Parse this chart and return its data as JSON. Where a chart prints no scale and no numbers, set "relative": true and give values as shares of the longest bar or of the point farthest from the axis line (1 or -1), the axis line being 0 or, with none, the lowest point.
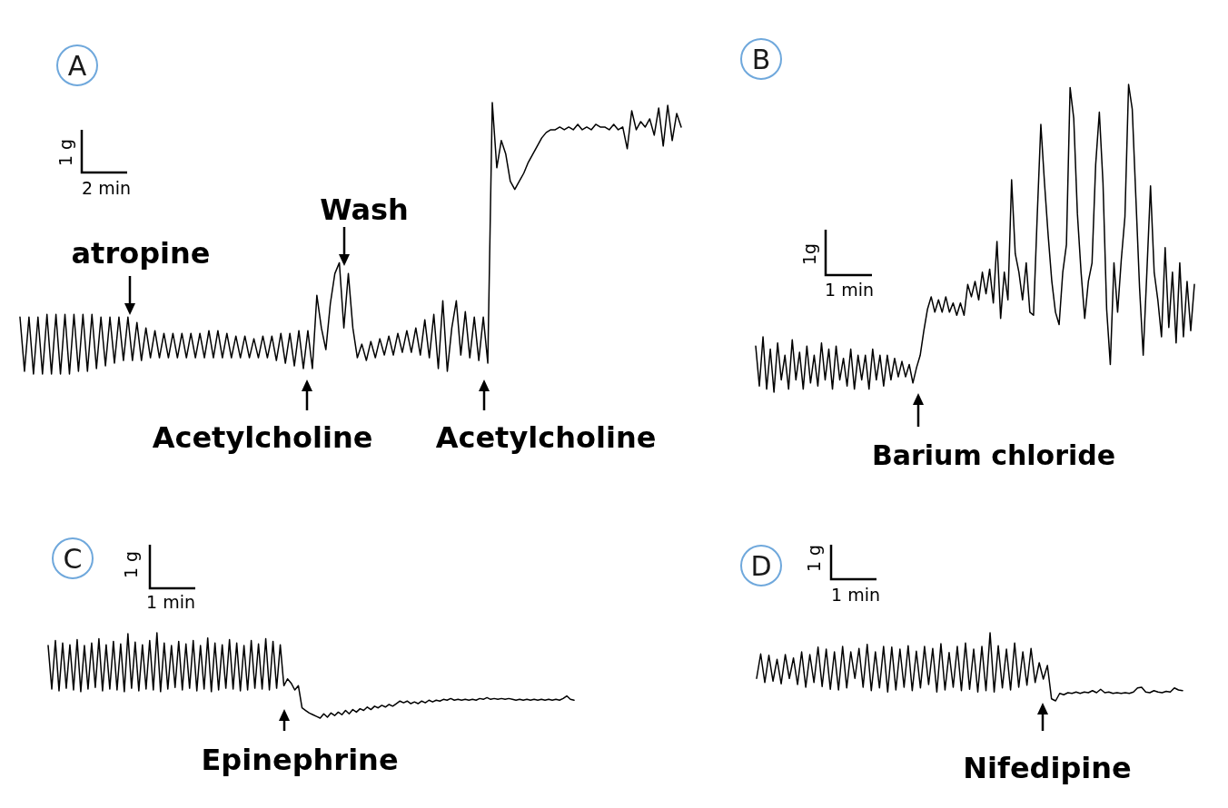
{
  "chart_data": [
    {
      "type": "line",
      "title": "A",
      "relative": true,
      "color": "#000000",
      "categories": [
        null,
        null,
        null,
        null,
        null,
        null,
        null,
        null,
        null,
        null,
        null,
        null,
        null,
        null,
        null,
        null,
        null,
        null,
        null,
        null,
        null,
        null,
        null,
        null,
        null,
        null,
        null,
        null,
        null,
        null,
        null,
        null,
        null,
        null,
        null,
        null,
        null,
        null,
        null,
        null,
        null,
        null,
        null,
        null,
        null,
        null,
        null,
        null,
        null,
        null,
        null,
        null,
        null,
        null,
        null,
        null,
        null,
        null,
        null,
        null,
        null,
        null,
        null,
        null,
        null,
        null,
        null,
        null,
        null,
        null,
        null,
        null,
        null,
        null,
        null,
        null,
        null,
        null,
        null,
        null,
        null,
        null,
        null,
        null,
        null,
        null,
        null,
        null,
        null,
        null,
        null,
        null,
        null,
        null,
        null,
        null,
        null,
        null,
        null,
        null,
        null,
        null,
        null,
        null,
        null,
        null,
        null,
        null,
        null,
        null,
        null,
        null,
        null,
        null,
        null,
        null,
        null,
        null,
        null,
        null,
        null,
        null,
        null,
        null,
        null,
        null,
        null,
        null,
        null,
        null,
        null,
        null,
        null,
        null,
        null,
        null,
        null,
        null,
        null,
        null,
        null,
        null,
        null,
        null,
        null,
        null,
        null,
        null
      ],
      "values": [
        0.21,
        0.01,
        0.21,
        0,
        0.21,
        0,
        0.22,
        0,
        0.22,
        0,
        0.22,
        0,
        0.22,
        0.01,
        0.22,
        0.01,
        0.22,
        0.02,
        0.21,
        0.03,
        0.21,
        0.04,
        0.21,
        0.05,
        0.21,
        0.05,
        0.19,
        0.05,
        0.17,
        0.06,
        0.16,
        0.06,
        0.15,
        0.06,
        0.15,
        0.06,
        0.15,
        0.06,
        0.15,
        0.06,
        0.15,
        0.06,
        0.16,
        0.06,
        0.16,
        0.06,
        0.15,
        0.06,
        0.14,
        0.06,
        0.14,
        0.06,
        0.13,
        0.06,
        0.14,
        0.06,
        0.14,
        0.05,
        0.15,
        0.04,
        0.15,
        0.03,
        0.16,
        0.02,
        0.16,
        0.02,
        0.29,
        0.17,
        0.09,
        0.26,
        0.37,
        0.41,
        0.17,
        0.37,
        0.17,
        0.06,
        0.11,
        0.05,
        0.12,
        0.06,
        0.13,
        0.07,
        0.14,
        0.07,
        0.15,
        0.08,
        0.16,
        0.08,
        0.17,
        0.07,
        0.2,
        0.06,
        0.22,
        0.02,
        0.27,
        0.01,
        0.17,
        0.27,
        0.07,
        0.23,
        0.06,
        0.21,
        0.05,
        0.21,
        0.04,
        1,
        0.76,
        0.86,
        0.81,
        0.71,
        0.68,
        0.71,
        0.74,
        0.78,
        0.81,
        0.84,
        0.87,
        0.89,
        0.9,
        0.9,
        0.91,
        0.9,
        0.91,
        0.9,
        0.92,
        0.9,
        0.91,
        0.9,
        0.92,
        0.91,
        0.91,
        0.9,
        0.92,
        0.9,
        0.91,
        0.83,
        0.97,
        0.9,
        0.93,
        0.91,
        0.94,
        0.88,
        0.98,
        0.84,
        0.99,
        0.86,
        0.96,
        0.91
      ],
      "annotations": [
        "atropine",
        "Wash",
        "Acetylcholine",
        "Acetylcholine",
        "1 g",
        "2 min"
      ]
    },
    {
      "type": "line",
      "title": "B",
      "relative": true,
      "color": "#000000",
      "categories": [
        null,
        null,
        null,
        null,
        null,
        null,
        null,
        null,
        null,
        null,
        null,
        null,
        null,
        null,
        null,
        null,
        null,
        null,
        null,
        null,
        null,
        null,
        null,
        null,
        null,
        null,
        null,
        null,
        null,
        null,
        null,
        null,
        null,
        null,
        null,
        null,
        null,
        null,
        null,
        null,
        null,
        null,
        null,
        null,
        null,
        null,
        null,
        null,
        null,
        null,
        null,
        null,
        null,
        null,
        null,
        null,
        null,
        null,
        null,
        null,
        null,
        null,
        null,
        null,
        null,
        null,
        null,
        null,
        null,
        null,
        null,
        null,
        null,
        null,
        null,
        null,
        null,
        null,
        null,
        null,
        null,
        null,
        null,
        null,
        null,
        null,
        null,
        null,
        null,
        null,
        null,
        null,
        null,
        null,
        null,
        null,
        null,
        null,
        null,
        null,
        null,
        null,
        null,
        null,
        null,
        null,
        null,
        null,
        null,
        null,
        null,
        null,
        null,
        null,
        null,
        null,
        null,
        null,
        null,
        null,
        null
      ],
      "values": [
        0.15,
        0.02,
        0.18,
        0.01,
        0.14,
        0,
        0.16,
        0.04,
        0.12,
        0.01,
        0.17,
        0.04,
        0.13,
        0.01,
        0.15,
        0.03,
        0.12,
        0.02,
        0.16,
        0.04,
        0.14,
        0.01,
        0.15,
        0.04,
        0.11,
        0.02,
        0.14,
        0.01,
        0.12,
        0.04,
        0.12,
        0.01,
        0.14,
        0.04,
        0.12,
        0.02,
        0.12,
        0.04,
        0.11,
        0.05,
        0.1,
        0.05,
        0.09,
        0.03,
        0.08,
        0.12,
        0.2,
        0.27,
        0.31,
        0.26,
        0.3,
        0.26,
        0.31,
        0.26,
        0.29,
        0.25,
        0.29,
        0.25,
        0.35,
        0.31,
        0.36,
        0.3,
        0.39,
        0.32,
        0.4,
        0.29,
        0.49,
        0.24,
        0.39,
        0.3,
        0.69,
        0.45,
        0.39,
        0.3,
        0.42,
        0.26,
        0.25,
        0.57,
        0.87,
        0.68,
        0.51,
        0.36,
        0.26,
        0.22,
        0.39,
        0.48,
        0.99,
        0.89,
        0.58,
        0.39,
        0.24,
        0.36,
        0.42,
        0.74,
        0.91,
        0.68,
        0.27,
        0.09,
        0.42,
        0.26,
        0.43,
        0.57,
        1,
        0.92,
        0.63,
        0.34,
        0.12,
        0.39,
        0.67,
        0.39,
        0.3,
        0.18,
        0.47,
        0.21,
        0.39,
        0.16,
        0.42,
        0.18,
        0.36,
        0.2,
        0.35
      ],
      "annotations": [
        "Barium chloride",
        "1g",
        "1 min"
      ]
    },
    {
      "type": "line",
      "title": "C",
      "relative": true,
      "color": "#000000",
      "categories": [
        null,
        null,
        null,
        null,
        null,
        null,
        null,
        null,
        null,
        null,
        null,
        null,
        null,
        null,
        null,
        null,
        null,
        null,
        null,
        null,
        null,
        null,
        null,
        null,
        null,
        null,
        null,
        null,
        null,
        null,
        null,
        null,
        null,
        null,
        null,
        null,
        null,
        null,
        null,
        null,
        null,
        null,
        null,
        null,
        null,
        null,
        null,
        null,
        null,
        null,
        null,
        null,
        null,
        null,
        null,
        null,
        null,
        null,
        null,
        null,
        null,
        null,
        null,
        null,
        null,
        null,
        null,
        null,
        null,
        null,
        null,
        null,
        null,
        null,
        null,
        null,
        null,
        null,
        null,
        null,
        null,
        null,
        null,
        null,
        null,
        null,
        null,
        null,
        null,
        null,
        null,
        null,
        null,
        null,
        null,
        null,
        null,
        null,
        null,
        null,
        null,
        null,
        null,
        null,
        null,
        null,
        null,
        null,
        null,
        null,
        null,
        null,
        null,
        null,
        null,
        null,
        null,
        null,
        null,
        null,
        null,
        null,
        null,
        null,
        null,
        null,
        null,
        null,
        null,
        null,
        null,
        null,
        null,
        null,
        null,
        null,
        null,
        null,
        null,
        null,
        null,
        null,
        null,
        null,
        null,
        null
      ],
      "values": [
        0.85,
        0.34,
        0.91,
        0.32,
        0.88,
        0.35,
        0.86,
        0.33,
        0.92,
        0.31,
        0.85,
        0.34,
        0.88,
        0.36,
        0.93,
        0.32,
        0.86,
        0.34,
        0.9,
        0.33,
        0.87,
        0.31,
        0.99,
        0.35,
        0.89,
        0.32,
        0.86,
        0.34,
        0.91,
        0.33,
        1,
        0.31,
        0.88,
        0.34,
        0.85,
        0.36,
        0.9,
        0.33,
        0.87,
        0.35,
        0.91,
        0.32,
        0.85,
        0.34,
        0.94,
        0.31,
        0.88,
        0.33,
        0.86,
        0.35,
        0.92,
        0.34,
        0.88,
        0.32,
        0.85,
        0.33,
        0.91,
        0.35,
        0.87,
        0.34,
        0.93,
        0.33,
        0.9,
        0.35,
        0.86,
        0.38,
        0.46,
        0.41,
        0.33,
        0.38,
        0.12,
        0.09,
        0.06,
        0.04,
        0.02,
        0,
        0.05,
        0.01,
        0.06,
        0.03,
        0.07,
        0.04,
        0.09,
        0.05,
        0.1,
        0.07,
        0.11,
        0.09,
        0.13,
        0.1,
        0.14,
        0.12,
        0.15,
        0.13,
        0.16,
        0.14,
        0.17,
        0.2,
        0.18,
        0.2,
        0.17,
        0.19,
        0.17,
        0.2,
        0.18,
        0.21,
        0.19,
        0.21,
        0.2,
        0.22,
        0.21,
        0.23,
        0.21,
        0.22,
        0.21,
        0.22,
        0.21,
        0.22,
        0.21,
        0.23,
        0.22,
        0.24,
        0.22,
        0.23,
        0.22,
        0.23,
        0.22,
        0.23,
        0.22,
        0.21,
        0.22,
        0.21,
        0.22,
        0.21,
        0.22,
        0.21,
        0.22,
        0.21,
        0.22,
        0.21,
        0.22,
        0.21,
        0.23,
        0.26,
        0.22,
        0.21
      ],
      "annotations": [
        "Epinephrine",
        "1 g",
        "1 min"
      ]
    },
    {
      "type": "line",
      "title": "D",
      "relative": true,
      "color": "#000000",
      "categories": [
        null,
        null,
        null,
        null,
        null,
        null,
        null,
        null,
        null,
        null,
        null,
        null,
        null,
        null,
        null,
        null,
        null,
        null,
        null,
        null,
        null,
        null,
        null,
        null,
        null,
        null,
        null,
        null,
        null,
        null,
        null,
        null,
        null,
        null,
        null,
        null,
        null,
        null,
        null,
        null,
        null,
        null,
        null,
        null,
        null,
        null,
        null,
        null,
        null,
        null,
        null,
        null,
        null,
        null,
        null,
        null,
        null,
        null,
        null,
        null,
        null,
        null,
        null,
        null,
        null,
        null,
        null,
        null,
        null,
        null,
        null,
        null,
        null,
        null,
        null,
        null,
        null,
        null,
        null,
        null,
        null,
        null,
        null,
        null,
        null,
        null,
        null,
        null,
        null,
        null,
        null,
        null,
        null,
        null,
        null,
        null,
        null,
        null,
        null,
        null,
        null,
        null,
        null,
        null,
        null
      ],
      "values": [
        0.33,
        0.69,
        0.27,
        0.67,
        0.29,
        0.61,
        0.25,
        0.68,
        0.33,
        0.63,
        0.24,
        0.72,
        0.2,
        0.68,
        0.27,
        0.79,
        0.21,
        0.76,
        0.17,
        0.72,
        0.16,
        0.8,
        0.19,
        0.72,
        0.33,
        0.77,
        0.2,
        0.83,
        0.15,
        0.72,
        0.19,
        0.8,
        0.13,
        0.79,
        0.16,
        0.76,
        0.2,
        0.81,
        0.15,
        0.73,
        0.19,
        0.8,
        0.24,
        0.77,
        0.13,
        0.84,
        0.16,
        0.71,
        0.2,
        0.8,
        0.15,
        0.85,
        0.17,
        0.76,
        0.13,
        0.8,
        0.15,
        1,
        0.13,
        0.81,
        0.19,
        0.76,
        0.16,
        0.85,
        0.2,
        0.72,
        0.23,
        0.77,
        0.27,
        0.56,
        0.32,
        0.52,
        0.03,
        0,
        0.11,
        0.09,
        0.12,
        0.11,
        0.13,
        0.11,
        0.13,
        0.12,
        0.15,
        0.12,
        0.17,
        0.12,
        0.13,
        0.11,
        0.12,
        0.11,
        0.12,
        0.11,
        0.13,
        0.19,
        0.2,
        0.13,
        0.12,
        0.15,
        0.13,
        0.12,
        0.14,
        0.13,
        0.19,
        0.16,
        0.15
      ],
      "annotations": [
        "Nifedipine",
        "1 g",
        "1 min"
      ]
    }
  ]
}
